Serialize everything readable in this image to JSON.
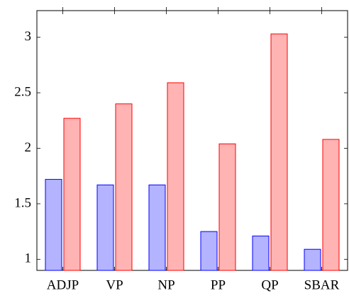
{
  "chart_data": {
    "type": "bar",
    "categories": [
      "ADJP",
      "VP",
      "NP",
      "PP",
      "QP",
      "SBAR"
    ],
    "series": [
      {
        "color": "#0000ff",
        "fill": "#b3b3ff",
        "values": [
          1.72,
          1.67,
          1.67,
          1.25,
          1.21,
          1.09
        ]
      },
      {
        "color": "#ff0000",
        "fill": "#ffb3b3",
        "values": [
          2.27,
          2.4,
          2.59,
          2.04,
          3.03,
          2.08
        ]
      }
    ],
    "ylim": [
      0.9,
      3.24
    ],
    "yticks": [
      1,
      1.5,
      2,
      2.5,
      3
    ],
    "grid": false
  }
}
